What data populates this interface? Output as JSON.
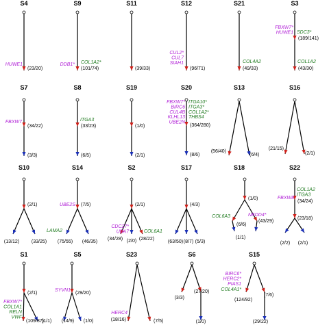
{
  "colors": {
    "gene_magenta": "#b01ed6",
    "gene_green": "#1f7a1f",
    "arrow_red": "#d0201a",
    "arrow_blue": "#1a2fb8"
  },
  "panels": [
    {
      "title": "S4",
      "count1": "(23/20)",
      "genes_left": [
        "HUWE1"
      ],
      "genes_right": []
    },
    {
      "title": "S9",
      "count1": "(101/74)",
      "genes_left": [
        "DDB1*"
      ],
      "genes_right": [
        "COL1A2*"
      ]
    },
    {
      "title": "S11",
      "count1": "(39/33)",
      "genes_left": [],
      "genes_right": []
    },
    {
      "title": "S12",
      "count1": "(96/71)",
      "genes_left": [
        "CUL2*",
        "CUL7",
        "SIAH1"
      ],
      "genes_right": []
    },
    {
      "title": "S21",
      "count1": "(49/33)",
      "genes_left": [],
      "genes_right": [
        "COL4A2"
      ]
    },
    {
      "title": "S3",
      "count1": "(189/141)",
      "count2": "(43/30)",
      "genes_left": [
        "FBXW7*",
        "HUWE1"
      ],
      "genes_right": [
        "SDC3*"
      ],
      "genes2_right": [
        "COL1A2"
      ]
    },
    {
      "title": "S7",
      "count1": "(34/22)",
      "count2": "(3/3)",
      "genes_left": [
        "FBXW7"
      ],
      "genes_right": []
    },
    {
      "title": "S8",
      "count1": "(33/23)",
      "count2": "(6/5)",
      "genes_left": [],
      "genes_right": [
        "ITGA3"
      ]
    },
    {
      "title": "S19",
      "count1": "(1/0)",
      "count2": "(2/1)",
      "genes_left": [],
      "genes_right": []
    },
    {
      "title": "S20",
      "count1": "(364/280)",
      "count2": "(8/6)",
      "genes_left": [
        "FBXW7*",
        "BIRC6",
        "CUL4B",
        "KLHL13",
        "UBE2N"
      ],
      "genes_right": [
        "ITGA10*",
        "ITGA3*",
        "COL1A2*",
        "THBS4"
      ]
    },
    {
      "title": "S13",
      "count_left": "(56/40)",
      "count_right": "(6/4)"
    },
    {
      "title": "S16",
      "count_left": "(21/15)",
      "count_right": "(2/1)"
    },
    {
      "title": "S10",
      "count1": "(2/1)",
      "count_left": "(13/12)",
      "count_right": "(33/25)"
    },
    {
      "title": "S14",
      "count1": "(7/5)",
      "count_left": "(75/55)",
      "count_right": "(46/35)",
      "genes_left": [
        "UBE2S"
      ],
      "genes_bl": [
        "LAMA2"
      ]
    },
    {
      "title": "S2",
      "count1": "(2/1)",
      "count_left": "(34/28)",
      "count_mid": "(2/0)",
      "count_right": "(28/22)",
      "genes_bl": [
        "CDC27*",
        "UBA7"
      ],
      "genes_br": [
        "COL6A1"
      ]
    },
    {
      "title": "S17",
      "count1": "(4/3)",
      "count_left": "(63/50)",
      "count_mid": "(8/7)",
      "count_right": "(5/3)"
    },
    {
      "title": "S18",
      "count1": "(1/0)",
      "count_left": "(6/6)",
      "count_right": "(43/29)",
      "count_low": "(1/1)",
      "genes_bl": [
        "COL6A3"
      ],
      "genes_br": [
        "NEDD4*"
      ]
    },
    {
      "title": "S22",
      "count1": "(34/24)",
      "count2": "(23/18)",
      "count_left": "(2/2)",
      "count_right": "(2/1)",
      "genes_left": [
        "FBXW8"
      ],
      "genes_right": [
        "COL1A2",
        "ITGA3"
      ]
    },
    {
      "title": "S1",
      "count1": "(2/1)",
      "count_left": "(109/87)",
      "count_right": "(1/1)",
      "genes_bl": [
        "FBXW7*",
        "COL1A1",
        "RELN",
        "VWF"
      ]
    },
    {
      "title": "S5",
      "count1": "(29/20)",
      "count_left": "(14/9)",
      "count_right": "(1/0)",
      "genes_left": [
        "SYVN1"
      ]
    },
    {
      "title": "S23",
      "count_left": "(18/16)",
      "count_right": "(7/5)",
      "genes_bl": [
        "HERC4"
      ]
    },
    {
      "title": "S6",
      "count1": "(27/20)",
      "count_left": "(3/3)",
      "count_low": "(1/0)"
    },
    {
      "title": "S15",
      "count_left": "(124/92)",
      "count_right": "(7/6)",
      "count_low": "(29/22)",
      "genes_bl": [
        "BIRC6*",
        "HERC2*",
        "PIAS1"
      ],
      "genes_bl2": [
        "COL4A1*"
      ]
    }
  ]
}
